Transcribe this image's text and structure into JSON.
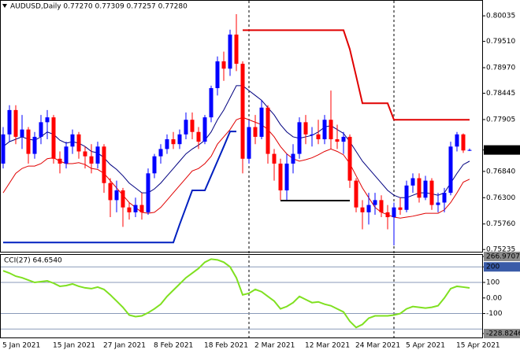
{
  "chart_data": [
    {
      "type": "candlestick",
      "title": "AUDUSD,Daily 0.77270 0.77309 0.77257 0.77280",
      "categories": [
        "5 Jan 2021",
        null,
        null,
        null,
        null,
        null,
        null,
        null,
        "15 Jan 2021",
        null,
        null,
        null,
        null,
        null,
        null,
        null,
        "27 Jan 2021",
        null,
        null,
        null,
        null,
        null,
        null,
        null,
        "8 Feb 2021",
        null,
        null,
        null,
        null,
        null,
        null,
        null,
        "18 Feb 2021",
        null,
        null,
        null,
        null,
        null,
        null,
        null,
        "2 Mar 2021",
        null,
        null,
        null,
        null,
        null,
        null,
        null,
        "12 Mar 2021",
        null,
        null,
        null,
        null,
        null,
        null,
        null,
        "24 Mar 2021",
        null,
        null,
        null,
        null,
        null,
        null,
        null,
        "5 Apr 2021",
        null,
        null,
        null,
        null,
        null,
        null,
        null,
        "15 Apr 2021",
        null,
        null
      ],
      "open": [
        0.77,
        0.776,
        0.781,
        0.7755,
        0.777,
        0.772,
        0.7755,
        0.7785,
        0.7795,
        0.771,
        0.77,
        0.7735,
        0.776,
        0.7725,
        0.7715,
        0.77,
        0.7735,
        0.766,
        0.7625,
        0.7645,
        0.761,
        0.76,
        0.7615,
        0.76,
        0.768,
        0.7715,
        0.773,
        0.775,
        0.774,
        0.776,
        0.779,
        0.7765,
        0.7745,
        0.7795,
        0.7855,
        0.791,
        0.7895,
        0.7965,
        0.7905,
        0.771,
        0.7775,
        0.7755,
        0.7815,
        0.772,
        0.77,
        0.7645,
        0.77,
        0.772,
        0.7785,
        0.776,
        0.776,
        0.775,
        0.779,
        0.775,
        0.7745,
        0.7755,
        0.7665,
        0.761,
        0.76,
        0.7615,
        0.7625,
        0.76,
        0.759,
        0.761,
        0.7605,
        0.7655,
        0.767,
        0.763,
        0.7665,
        0.7615,
        0.762,
        0.764,
        0.7735,
        0.776,
        0.7727
      ],
      "high": [
        0.7775,
        0.782,
        0.782,
        0.78,
        0.7775,
        0.7765,
        0.78,
        0.781,
        0.78,
        0.7725,
        0.7745,
        0.777,
        0.7765,
        0.7735,
        0.774,
        0.7745,
        0.774,
        0.767,
        0.7665,
        0.765,
        0.762,
        0.763,
        0.764,
        0.769,
        0.772,
        0.774,
        0.776,
        0.7765,
        0.777,
        0.7805,
        0.7805,
        0.7775,
        0.78,
        0.786,
        0.792,
        0.793,
        0.7975,
        0.8007,
        0.791,
        0.779,
        0.78,
        0.783,
        0.782,
        0.773,
        0.771,
        0.772,
        0.774,
        0.7795,
        0.78,
        0.7775,
        0.779,
        0.78,
        0.785,
        0.778,
        0.7765,
        0.776,
        0.767,
        0.7625,
        0.764,
        0.764,
        0.7635,
        0.7615,
        0.762,
        0.763,
        0.7665,
        0.768,
        0.768,
        0.7675,
        0.767,
        0.764,
        0.765,
        0.7745,
        0.7765,
        0.7762,
        0.77309
      ],
      "low": [
        0.769,
        0.7745,
        0.774,
        0.773,
        0.77,
        0.771,
        0.774,
        0.775,
        0.77,
        0.768,
        0.769,
        0.772,
        0.771,
        0.769,
        0.768,
        0.769,
        0.764,
        0.759,
        0.76,
        0.757,
        0.7585,
        0.759,
        0.7585,
        0.7595,
        0.767,
        0.77,
        0.772,
        0.773,
        0.773,
        0.775,
        0.775,
        0.773,
        0.774,
        0.7785,
        0.784,
        0.787,
        0.788,
        0.789,
        0.768,
        0.77,
        0.774,
        0.775,
        0.77,
        0.7665,
        0.7625,
        0.7625,
        0.768,
        0.771,
        0.774,
        0.7735,
        0.774,
        0.774,
        0.773,
        0.773,
        0.772,
        0.765,
        0.76,
        0.7565,
        0.7575,
        0.7595,
        0.759,
        0.7565,
        0.7532,
        0.7595,
        0.76,
        0.764,
        0.762,
        0.7625,
        0.7605,
        0.76,
        0.76,
        0.7635,
        0.7725,
        0.7722,
        0.77257
      ],
      "close": [
        0.776,
        0.781,
        0.7755,
        0.777,
        0.772,
        0.7755,
        0.7785,
        0.7795,
        0.771,
        0.77,
        0.7735,
        0.776,
        0.7725,
        0.7715,
        0.77,
        0.7735,
        0.766,
        0.7625,
        0.7645,
        0.761,
        0.76,
        0.7615,
        0.76,
        0.768,
        0.7715,
        0.773,
        0.775,
        0.774,
        0.776,
        0.779,
        0.7765,
        0.7745,
        0.7795,
        0.7855,
        0.791,
        0.7895,
        0.7965,
        0.7905,
        0.771,
        0.7775,
        0.7755,
        0.7815,
        0.772,
        0.77,
        0.7645,
        0.77,
        0.772,
        0.7785,
        0.776,
        0.776,
        0.775,
        0.779,
        0.775,
        0.7745,
        0.7755,
        0.7665,
        0.761,
        0.76,
        0.7615,
        0.7625,
        0.76,
        0.759,
        0.761,
        0.7605,
        0.7655,
        0.767,
        0.763,
        0.7665,
        0.7615,
        0.762,
        0.764,
        0.7735,
        0.776,
        0.7727,
        0.7728
      ],
      "up_color": "#0000ff",
      "down_color": "#ff0000",
      "overlays": [
        {
          "color": "#000080",
          "width": 1,
          "values": [
            0.7735,
            0.7745,
            0.775,
            0.7755,
            0.775,
            0.7748,
            0.7755,
            0.7765,
            0.776,
            0.7748,
            0.7742,
            0.7745,
            0.7742,
            0.7735,
            0.7725,
            0.7722,
            0.7712,
            0.7698,
            0.7688,
            0.7675,
            0.766,
            0.765,
            0.764,
            0.764,
            0.7648,
            0.766,
            0.7675,
            0.769,
            0.7705,
            0.772,
            0.773,
            0.7738,
            0.7748,
            0.7765,
            0.779,
            0.781,
            0.7835,
            0.786,
            0.786,
            0.785,
            0.784,
            0.783,
            0.7815,
            0.78,
            0.778,
            0.7765,
            0.7755,
            0.7752,
            0.7755,
            0.7758,
            0.7765,
            0.7775,
            0.7778,
            0.777,
            0.7762,
            0.7745,
            0.7725,
            0.7705,
            0.769,
            0.7675,
            0.766,
            0.7645,
            0.7635,
            0.763,
            0.763,
            0.7635,
            0.764,
            0.764,
            0.7638,
            0.7635,
            0.764,
            0.766,
            0.768,
            0.7698,
            0.7705
          ]
        },
        {
          "color": "#e00000",
          "width": 1,
          "values": [
            0.764,
            0.766,
            0.768,
            0.769,
            0.7695,
            0.7695,
            0.77,
            0.771,
            0.7712,
            0.7705,
            0.77,
            0.77,
            0.7702,
            0.7698,
            0.769,
            0.7688,
            0.768,
            0.7665,
            0.765,
            0.7635,
            0.762,
            0.761,
            0.76,
            0.7598,
            0.76,
            0.761,
            0.7625,
            0.764,
            0.7655,
            0.767,
            0.7685,
            0.769,
            0.77,
            0.7715,
            0.774,
            0.7755,
            0.777,
            0.779,
            0.7795,
            0.779,
            0.7785,
            0.778,
            0.777,
            0.7755,
            0.7735,
            0.772,
            0.771,
            0.7705,
            0.7708,
            0.7712,
            0.7718,
            0.7725,
            0.773,
            0.7725,
            0.7718,
            0.77,
            0.7675,
            0.765,
            0.763,
            0.761,
            0.76,
            0.7595,
            0.759,
            0.7588,
            0.759,
            0.7592,
            0.7595,
            0.7598,
            0.7598,
            0.7598,
            0.7605,
            0.762,
            0.764,
            0.7662,
            0.7668
          ]
        },
        {
          "color": "#e00000",
          "width": 2,
          "values": [
            null,
            null,
            null,
            null,
            null,
            null,
            null,
            null,
            null,
            null,
            null,
            null,
            null,
            null,
            null,
            null,
            null,
            null,
            null,
            null,
            null,
            null,
            null,
            null,
            null,
            null,
            null,
            null,
            null,
            null,
            null,
            null,
            null,
            null,
            null,
            null,
            null,
            null,
            0.7974,
            0.7974,
            0.7974,
            0.7974,
            0.7974,
            0.7974,
            0.7974,
            0.7974,
            0.7974,
            0.7974,
            0.7974,
            0.7974,
            0.7974,
            0.7974,
            0.7974,
            0.7974,
            0.7974,
            0.7935,
            0.788,
            0.7824,
            0.7824,
            0.7824,
            0.7824,
            0.7824,
            0.779,
            0.779,
            0.779,
            0.779,
            0.779,
            0.779,
            0.779,
            0.779,
            0.779,
            0.779,
            0.779,
            0.779,
            0.779
          ]
        },
        {
          "color": "#0020c0",
          "width": 2,
          "values": [
            0.7538,
            0.7538,
            0.7538,
            0.7538,
            0.7538,
            0.7538,
            0.7538,
            0.7538,
            0.7538,
            0.7538,
            0.7538,
            0.7538,
            0.7538,
            0.7538,
            0.7538,
            0.7538,
            0.7538,
            0.7538,
            0.7538,
            0.7538,
            0.7538,
            0.7538,
            0.7538,
            0.7538,
            0.7538,
            0.7538,
            0.7538,
            0.7538,
            0.7575,
            0.761,
            0.7645,
            0.7645,
            0.7645,
            0.7675,
            0.7705,
            0.7735,
            0.7766,
            0.7766,
            null,
            null,
            null,
            null,
            null,
            null,
            null,
            null,
            null,
            null,
            null,
            null,
            null,
            null,
            null,
            null,
            null,
            null,
            null,
            null,
            null,
            null,
            null,
            null,
            null,
            null,
            null,
            null,
            null,
            null,
            null,
            null,
            null,
            null,
            null,
            null,
            null
          ]
        },
        {
          "color": "#000000",
          "width": 2,
          "values": [
            null,
            null,
            null,
            null,
            null,
            null,
            null,
            null,
            null,
            null,
            null,
            null,
            null,
            null,
            null,
            null,
            null,
            null,
            null,
            null,
            null,
            null,
            null,
            null,
            null,
            null,
            null,
            null,
            null,
            null,
            null,
            null,
            null,
            null,
            null,
            null,
            null,
            null,
            null,
            null,
            null,
            null,
            null,
            null,
            0.7624,
            0.7624,
            0.7624,
            0.7624,
            0.7624,
            0.7624,
            0.7624,
            0.7624,
            0.7624,
            0.7624,
            0.7624,
            0.7624,
            null,
            null,
            null,
            null,
            null,
            null,
            null,
            null,
            null,
            null,
            null,
            null,
            null,
            null,
            null,
            null,
            null,
            null,
            null
          ]
        }
      ],
      "ylim": [
        0.7519,
        0.8036
      ],
      "yticks": [
        0.80035,
        {
          "value": 0.7951,
          "label": "0.79510"
        },
        {
          "value": 0.7897,
          "label": "0.78970"
        },
        0.78445,
        0.77905,
        {
          "value": 0.7684,
          "label": "0.76840"
        },
        {
          "value": 0.763,
          "label": "0.76300"
        },
        {
          "value": 0.7576,
          "label": "0.75760"
        },
        0.75235
      ],
      "last_price": {
        "value": 0.7728,
        "label": "0.77280"
      }
    },
    {
      "type": "line",
      "title": "CCI(27) 64.6540",
      "color": "#7fe020",
      "values": [
        175,
        160,
        140,
        130,
        115,
        100,
        105,
        110,
        95,
        75,
        80,
        90,
        75,
        65,
        60,
        70,
        55,
        20,
        -20,
        -60,
        -110,
        -120,
        -115,
        -95,
        -70,
        -40,
        10,
        50,
        90,
        130,
        160,
        190,
        230,
        250,
        245,
        230,
        200,
        130,
        20,
        30,
        55,
        40,
        10,
        -20,
        -70,
        -55,
        -30,
        10,
        -10,
        -30,
        -25,
        -40,
        -50,
        -70,
        -90,
        -150,
        -190,
        -170,
        -130,
        -115,
        -115,
        -115,
        -110,
        -100,
        -70,
        -55,
        -60,
        -65,
        -60,
        -50,
        0,
        60,
        75,
        70,
        64.654
      ],
      "ylim": [
        -228.8246,
        266.9707
      ],
      "yticks": [
        266.9707,
        200,
        100,
        {
          "value": 0,
          "label": "0.00"
        },
        -100,
        -228.8246
      ],
      "levels": [
        200,
        100,
        -100,
        -200
      ]
    }
  ]
}
